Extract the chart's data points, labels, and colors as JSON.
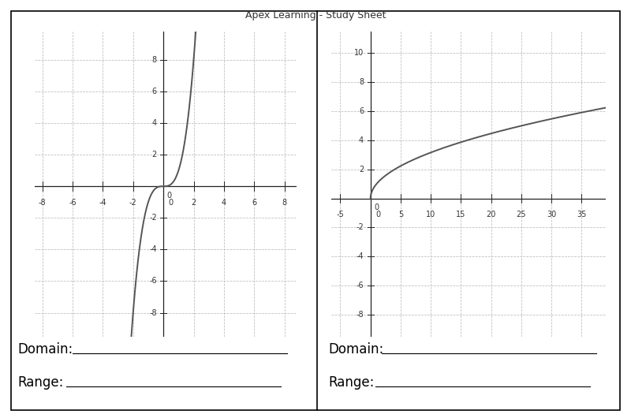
{
  "title": "Apex Learning - Study Sheet",
  "title_fontsize": 9,
  "title_color": "#333333",
  "background_color": "#ffffff",
  "plot_bg_color": "#ffffff",
  "grid_color": "#bbbbbb",
  "curve_color": "#555555",
  "curve_linewidth": 1.4,
  "left": {
    "xlim": [
      -8.5,
      8.8
    ],
    "ylim": [
      -9.5,
      9.8
    ],
    "xticks": [
      -8,
      -6,
      -4,
      -2,
      2,
      4,
      6,
      8
    ],
    "yticks": [
      -8,
      -6,
      -4,
      -2,
      2,
      4,
      6,
      8
    ],
    "x_origin_label": "0",
    "domain_label": "Domain:",
    "range_label": "Range:"
  },
  "right": {
    "xlim": [
      -6.5,
      39
    ],
    "ylim": [
      -9.5,
      11.5
    ],
    "xticks": [
      -5,
      5,
      10,
      15,
      20,
      25,
      30,
      35
    ],
    "yticks": [
      -8,
      -6,
      -4,
      -2,
      2,
      4,
      6,
      8,
      10
    ],
    "x_origin_label": "0",
    "domain_label": "Domain:",
    "range_label": "Range:"
  },
  "tick_fontsize": 7,
  "domain_range_fontsize": 12,
  "axis_linewidth": 0.9,
  "border_linewidth": 1.2
}
